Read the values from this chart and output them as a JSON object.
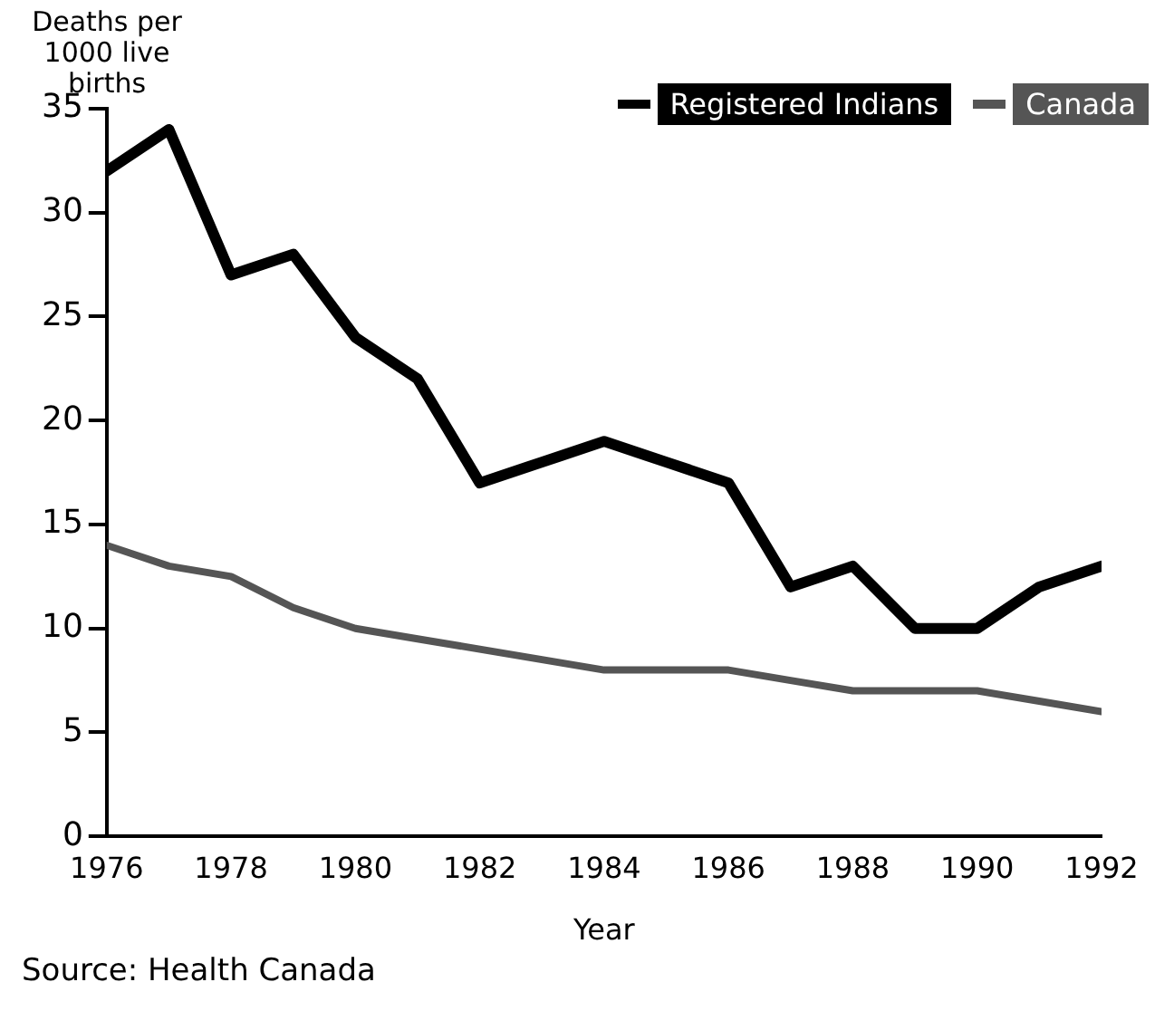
{
  "chart_data": {
    "type": "line",
    "ylabel": "Deaths per 1000 live births",
    "xlabel": "Year",
    "x": [
      1976,
      1977,
      1978,
      1979,
      1980,
      1981,
      1982,
      1983,
      1984,
      1985,
      1986,
      1987,
      1988,
      1989,
      1990,
      1991,
      1992
    ],
    "xlim": [
      1976,
      1992
    ],
    "xticks": [
      1976,
      1978,
      1980,
      1982,
      1984,
      1986,
      1988,
      1990,
      1992
    ],
    "ylim": [
      0,
      35
    ],
    "yticks": [
      0,
      5,
      10,
      15,
      20,
      25,
      30,
      35
    ],
    "series": [
      {
        "name": "Registered Indians",
        "color": "#000000",
        "values": [
          32,
          34,
          27,
          28,
          24,
          22,
          17,
          18,
          19,
          18,
          17,
          12,
          13,
          10,
          10,
          12,
          13
        ]
      },
      {
        "name": "Canada",
        "color": "#555555",
        "values": [
          14,
          13,
          12.5,
          11,
          10,
          9.5,
          9,
          8.5,
          8,
          8,
          8,
          7.5,
          7,
          7,
          7,
          6.5,
          6
        ]
      }
    ],
    "legend": "top right",
    "grid": false,
    "annotations": [
      "Source: Health Canada"
    ]
  }
}
